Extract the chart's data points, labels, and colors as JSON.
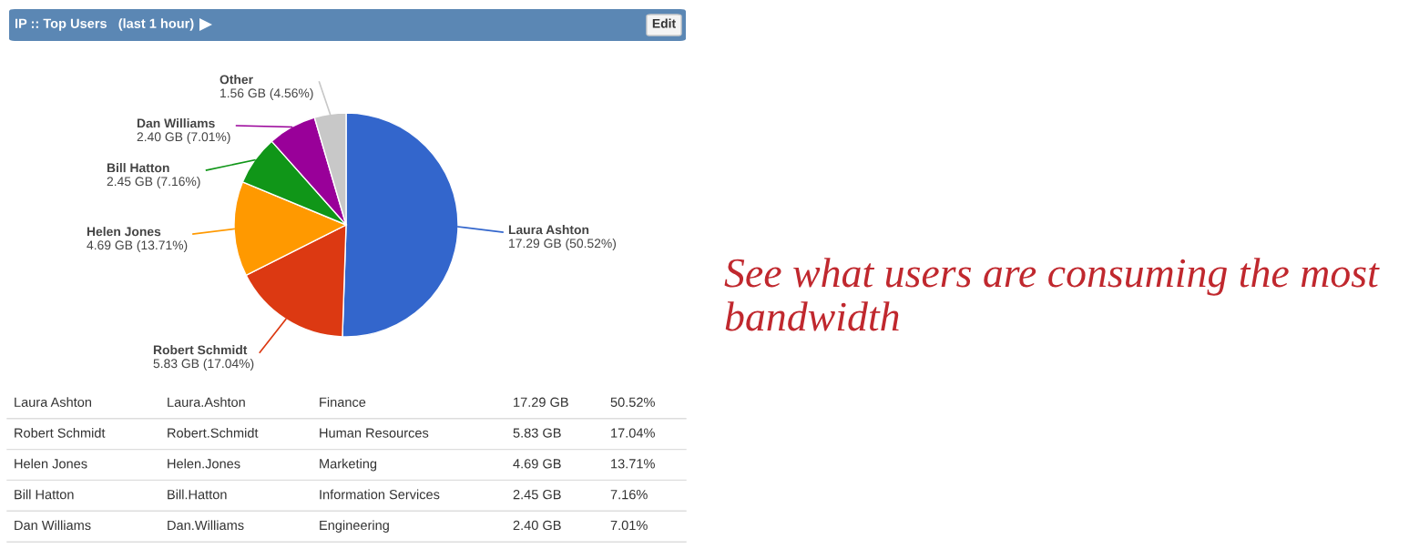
{
  "chart_data": {
    "type": "pie",
    "title": "IP :: Top Users   (last 1 hour)",
    "categories": [
      "Laura Ashton",
      "Robert Schmidt",
      "Helen Jones",
      "Bill Hatton",
      "Dan Williams",
      "Other"
    ],
    "values": [
      17.29,
      5.83,
      4.69,
      2.45,
      2.4,
      1.56
    ],
    "colors": [
      "#3366cc",
      "#dc3912",
      "#ff9900",
      "#109618",
      "#990099",
      "#c8c8c8"
    ],
    "value_labels": [
      "17.29 GB (50.52%)",
      "5.83 GB (17.04%)",
      "4.69 GB (13.71%)",
      "2.45 GB (7.16%)",
      "2.40 GB (7.01%)",
      "1.56 GB (4.56%)"
    ],
    "legend": false,
    "annotations": [
      "Edit",
      "See what users are consuming the most bandwidth",
      "Laura Ashton",
      "Laura.Ashton",
      "Finance",
      "17.29 GB",
      "50.52%",
      "Robert Schmidt",
      "Robert.Schmidt",
      "Human Resources",
      "5.83 GB",
      "17.04%",
      "Helen Jones",
      "Helen.Jones",
      "Marketing",
      "4.69 GB",
      "13.71%",
      "Bill Hatton",
      "Bill.Hatton",
      "Information Services",
      "2.45 GB",
      "7.16%",
      "Dan Williams",
      "Dan.Williams",
      "Engineering",
      "2.40 GB",
      "7.01%"
    ]
  }
}
